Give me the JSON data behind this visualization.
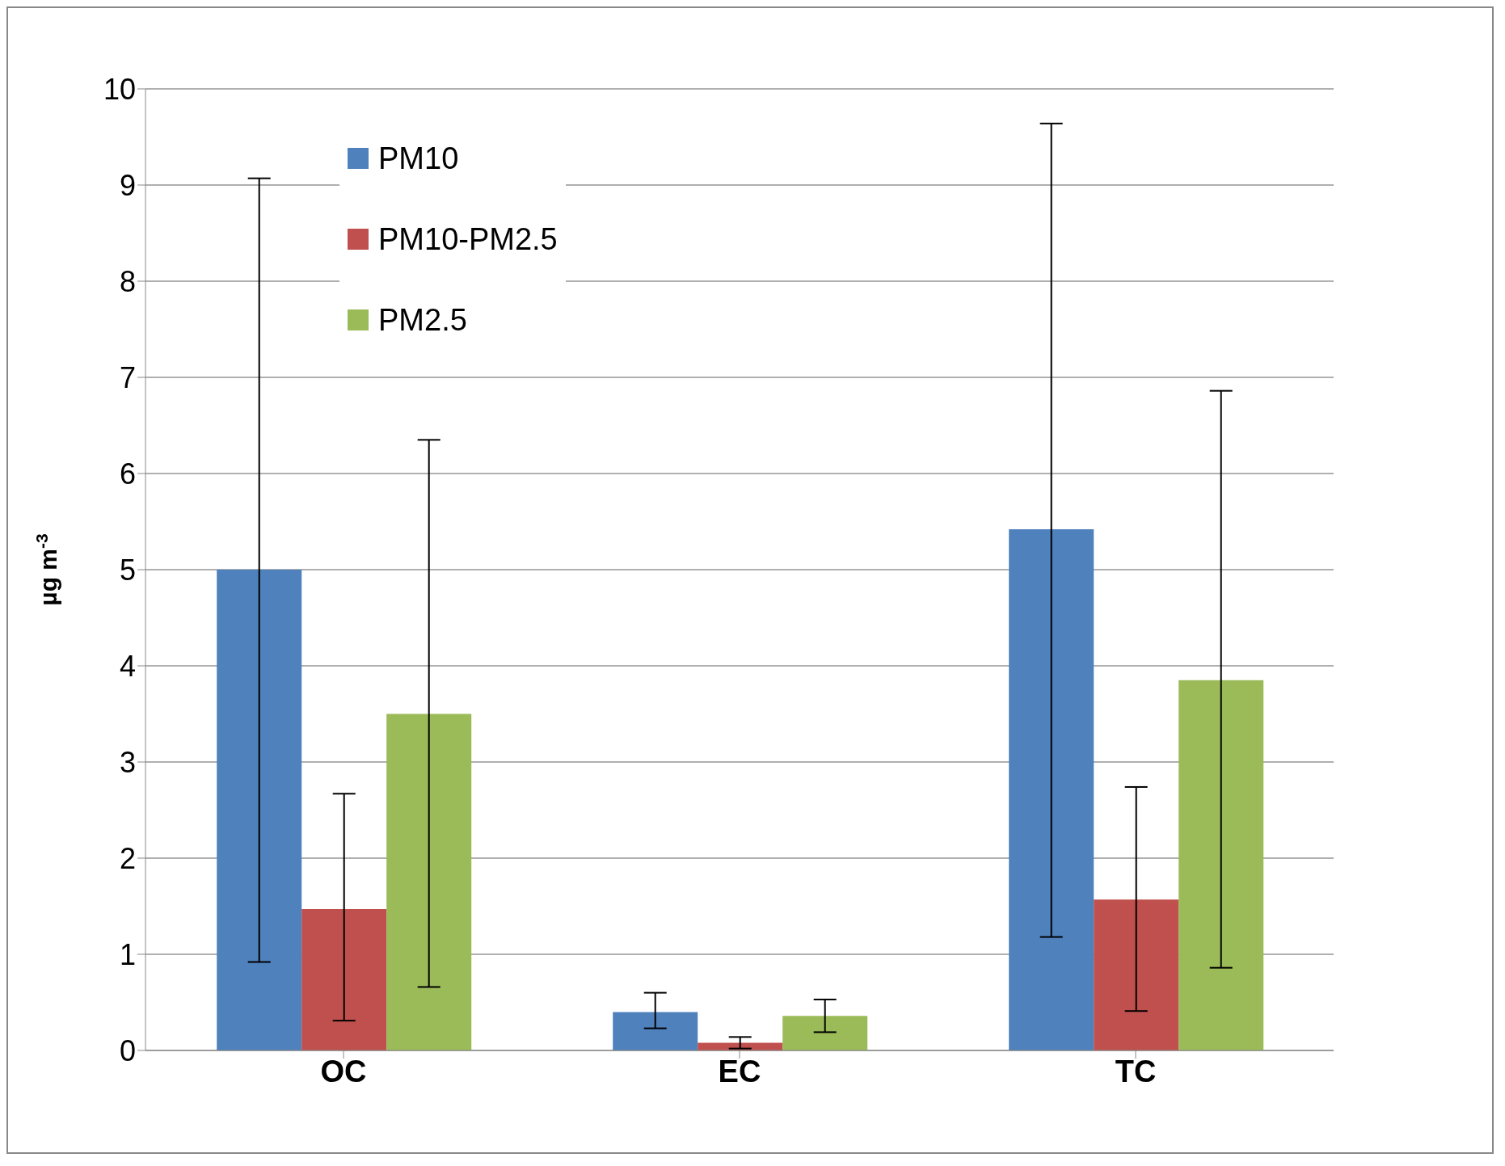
{
  "chart_data": {
    "type": "bar",
    "ylabel": "µg m$^{-3}$",
    "categories": [
      "OC",
      "EC",
      "TC"
    ],
    "series": [
      {
        "name": "PM10",
        "color": "#4f81bd",
        "values": [
          5.0,
          0.4,
          5.42
        ],
        "errors": [
          [
            0.92,
            9.07
          ],
          [
            0.23,
            0.6
          ],
          [
            1.18,
            9.64
          ]
        ]
      },
      {
        "name": "PM10-PM2.5",
        "color": "#c0504d",
        "values": [
          1.47,
          0.08,
          1.57
        ],
        "errors": [
          [
            0.31,
            2.67
          ],
          [
            0.02,
            0.14
          ],
          [
            0.41,
            2.74
          ]
        ]
      },
      {
        "name": "PM2.5",
        "color": "#9bbb59",
        "values": [
          3.5,
          0.36,
          3.85
        ],
        "errors": [
          [
            0.66,
            6.35
          ],
          [
            0.19,
            0.53
          ],
          [
            0.86,
            6.86
          ]
        ]
      }
    ],
    "ylim": [
      0,
      10
    ],
    "yticks": [
      0,
      1,
      2,
      3,
      4,
      5,
      6,
      7,
      8,
      9,
      10
    ],
    "grid": "y",
    "legend": "top left"
  }
}
